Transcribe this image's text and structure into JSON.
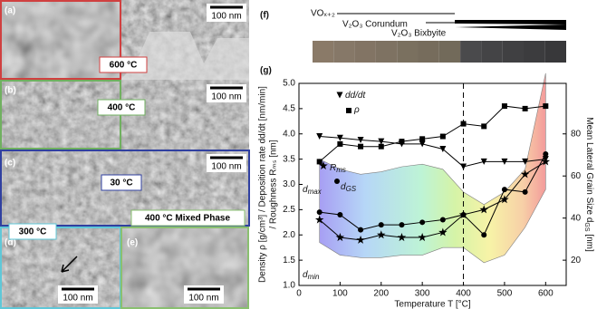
{
  "sem": {
    "panel_labels": [
      "(a)",
      "(b)",
      "(c)",
      "(d)",
      "(e)"
    ],
    "temperatures": [
      "600 °C",
      "400 °C",
      "30 °C",
      "300 °C",
      "400 °C Mixed Phase"
    ],
    "scale_bar": "100 nm"
  },
  "phase_diagram": {
    "label": "(f)",
    "phases": [
      "VOₓ₊₂",
      "V₂O₃ Corundum",
      "V₂O₃ Bixbyite"
    ]
  },
  "chart_data": {
    "type": "line",
    "label": "(g)",
    "x": [
      50,
      100,
      150,
      200,
      250,
      300,
      350,
      400,
      450,
      500,
      550,
      600
    ],
    "xlim": [
      0,
      650
    ],
    "xticks": [
      0,
      100,
      200,
      300,
      400,
      500,
      600
    ],
    "ylim": [
      1,
      5
    ],
    "yticks": [
      {
        "value": 1,
        "label": "1.0"
      },
      1.5,
      {
        "value": 2,
        "label": "2.0"
      },
      2.5,
      {
        "value": 3,
        "label": "3.0"
      },
      3.5,
      {
        "value": 4,
        "label": "4.0"
      },
      4.5,
      {
        "value": 5,
        "label": "5.0"
      }
    ],
    "y2lim": [
      8,
      104
    ],
    "y2ticks": [
      20,
      40,
      60,
      80
    ],
    "xlabel": "Temperature T [°C]",
    "ylabel": [
      "Density ρ [g/cm³] / Deposition rate dd/dt [nm/min]",
      "/ Roughness Rₘₛ [nm]"
    ],
    "y2label": {
      "text": "Mean Lateral Grain Size d",
      "sub": "GS",
      "unit": " [nm]"
    },
    "vline": 400,
    "series": [
      {
        "name": "dd/dt",
        "marker": "triangle",
        "color": "#000000",
        "values": [
          3.95,
          3.92,
          3.88,
          3.85,
          3.8,
          3.8,
          3.7,
          3.35,
          3.45,
          3.45,
          3.45,
          3.5
        ]
      },
      {
        "name": "ρ",
        "marker": "square",
        "color": "#000000",
        "values": [
          3.45,
          3.8,
          3.75,
          3.75,
          3.85,
          3.9,
          3.95,
          4.2,
          4.15,
          4.55,
          4.5,
          4.55
        ]
      },
      {
        "name": "R",
        "sub": "ms",
        "marker": "star",
        "color": "#000000",
        "values": [
          2.3,
          1.95,
          1.9,
          2.0,
          1.95,
          1.95,
          2.05,
          2.4,
          2.5,
          2.7,
          3.2,
          3.45
        ]
      },
      {
        "name": "d",
        "sub": "GS",
        "marker": "circle",
        "color": "#000000",
        "values": [
          2.45,
          2.4,
          2.1,
          2.2,
          2.2,
          2.25,
          2.3,
          2.4,
          2.0,
          2.9,
          2.85,
          3.6
        ]
      }
    ],
    "band": {
      "upper_name": "d",
      "upper_sub": "max",
      "lower_name": "d",
      "lower_sub": "min",
      "upper": [
        3.5,
        3.3,
        3.2,
        3.25,
        3.35,
        3.4,
        3.3,
        2.85,
        2.6,
        2.85,
        3.3,
        5.2
      ],
      "lower": [
        1.85,
        1.6,
        1.55,
        1.55,
        1.6,
        1.6,
        1.75,
        1.75,
        1.45,
        1.6,
        2.15,
        2.9
      ]
    }
  }
}
